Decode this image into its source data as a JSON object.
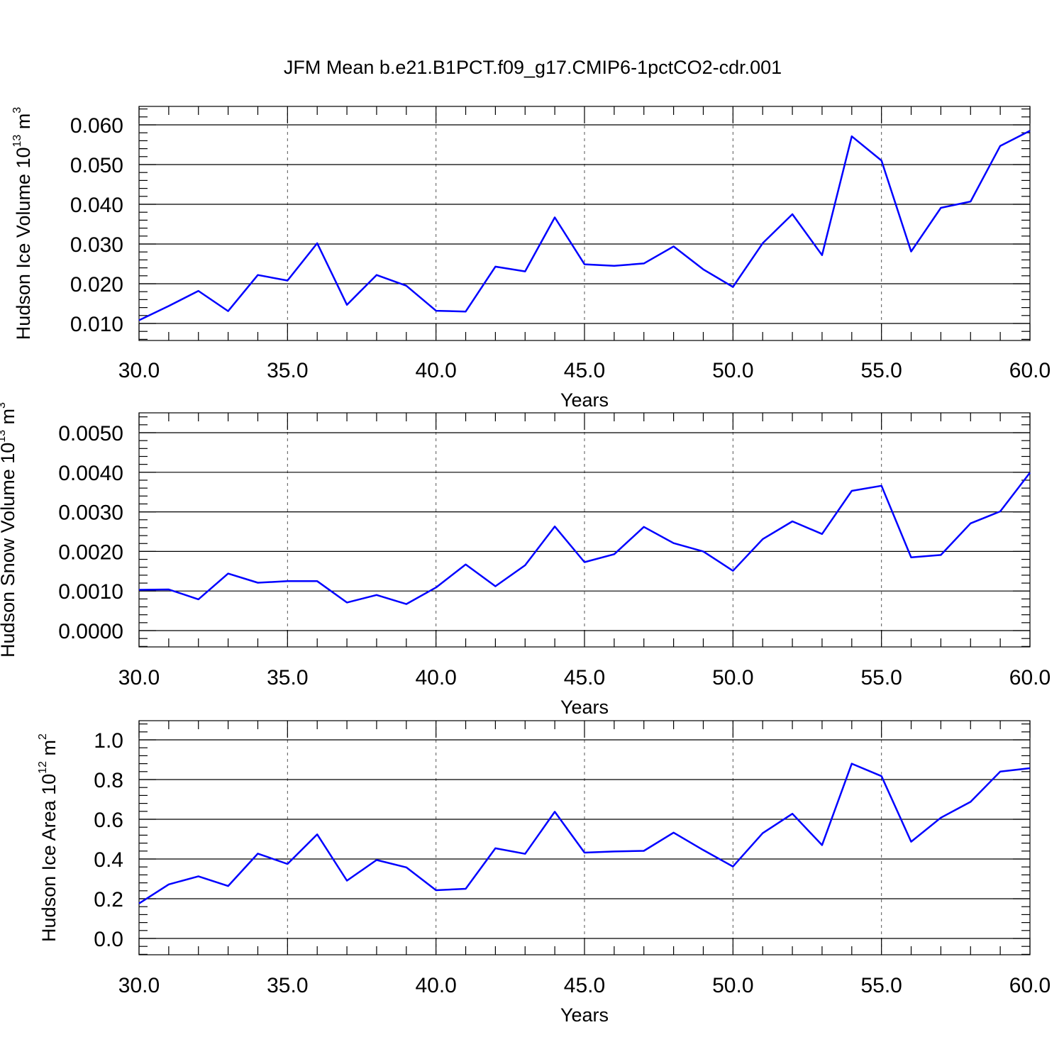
{
  "figure": {
    "title": "JFM Mean b.e21.B1PCT.f09_g17.CMIP6-1pctCO2-cdr.001"
  },
  "chart_data": [
    {
      "type": "line",
      "xlabel": "Years",
      "ylabel": {
        "main": "Hudson Ice Volume 10",
        "exp": "13",
        "unit": " m",
        "unit_exp": "3"
      },
      "xlim": [
        30,
        60
      ],
      "ylim": [
        0.01,
        0.06
      ],
      "x_ticks": [
        "30.0",
        "35.0",
        "40.0",
        "45.0",
        "50.0",
        "55.0",
        "60.0"
      ],
      "y_ticks": [
        "0.010",
        "0.020",
        "0.030",
        "0.040",
        "0.050",
        "0.060"
      ],
      "y_tick_values": [
        0.01,
        0.02,
        0.03,
        0.04,
        0.05,
        0.06
      ],
      "grid": "vertical dashed at major x ticks",
      "x": [
        30,
        31,
        32,
        33,
        34,
        35,
        36,
        37,
        38,
        39,
        40,
        41,
        42,
        43,
        44,
        45,
        46,
        47,
        48,
        49,
        50,
        51,
        52,
        53,
        54,
        55,
        56,
        57,
        58,
        59,
        60
      ],
      "series": [
        {
          "color": "#0000ff",
          "values": [
            0.0108,
            0.0144,
            0.0182,
            0.0131,
            0.0222,
            0.0208,
            0.0302,
            0.0147,
            0.0222,
            0.0195,
            0.0132,
            0.013,
            0.0243,
            0.0231,
            0.0367,
            0.0249,
            0.0245,
            0.0251,
            0.0294,
            0.0236,
            0.0192,
            0.0302,
            0.0375,
            0.0272,
            0.0571,
            0.051,
            0.0281,
            0.0391,
            0.0407,
            0.0547,
            0.0585
          ]
        }
      ]
    },
    {
      "type": "line",
      "xlabel": "Years",
      "ylabel": {
        "main": "Hudson Snow Volume 10",
        "exp": "13",
        "unit": " m",
        "unit_exp": "3"
      },
      "xlim": [
        30,
        60
      ],
      "ylim": [
        0,
        0.005
      ],
      "x_ticks": [
        "30.0",
        "35.0",
        "40.0",
        "45.0",
        "50.0",
        "55.0",
        "60.0"
      ],
      "y_ticks": [
        "0.0000",
        "0.0010",
        "0.0020",
        "0.0030",
        "0.0040",
        "0.0050"
      ],
      "y_tick_values": [
        0,
        0.001,
        0.002,
        0.003,
        0.004,
        0.005
      ],
      "grid": "vertical dashed at major x ticks",
      "x": [
        30,
        31,
        32,
        33,
        34,
        35,
        36,
        37,
        38,
        39,
        40,
        41,
        42,
        43,
        44,
        45,
        46,
        47,
        48,
        49,
        50,
        51,
        52,
        53,
        54,
        55,
        56,
        57,
        58,
        59,
        60
      ],
      "series": [
        {
          "color": "#0000ff",
          "values": [
            0.00103,
            0.00104,
            0.00079,
            0.00144,
            0.00121,
            0.00125,
            0.00125,
            0.00071,
            0.0009,
            0.00067,
            0.00109,
            0.00167,
            0.00112,
            0.00165,
            0.00263,
            0.00173,
            0.00193,
            0.00262,
            0.00221,
            0.002,
            0.00151,
            0.00231,
            0.00276,
            0.00244,
            0.00353,
            0.00366,
            0.00185,
            0.00191,
            0.00271,
            0.00301,
            0.00399
          ]
        }
      ]
    },
    {
      "type": "line",
      "xlabel": "Years",
      "ylabel": {
        "main": "Hudson Ice Area 10",
        "exp": "12",
        "unit": " m",
        "unit_exp": "2"
      },
      "xlim": [
        30,
        60
      ],
      "ylim": [
        0,
        1.0
      ],
      "x_ticks": [
        "30.0",
        "35.0",
        "40.0",
        "45.0",
        "50.0",
        "55.0",
        "60.0"
      ],
      "y_ticks": [
        "0.0",
        "0.2",
        "0.4",
        "0.6",
        "0.8",
        "1.0"
      ],
      "y_tick_values": [
        0,
        0.2,
        0.4,
        0.6,
        0.8,
        1.0
      ],
      "grid": "vertical dashed at major x ticks",
      "x": [
        30,
        31,
        32,
        33,
        34,
        35,
        36,
        37,
        38,
        39,
        40,
        41,
        42,
        43,
        44,
        45,
        46,
        47,
        48,
        49,
        50,
        51,
        52,
        53,
        54,
        55,
        56,
        57,
        58,
        59,
        60
      ],
      "series": [
        {
          "color": "#0000ff",
          "values": [
            0.176,
            0.272,
            0.313,
            0.264,
            0.427,
            0.375,
            0.524,
            0.291,
            0.395,
            0.358,
            0.243,
            0.25,
            0.454,
            0.426,
            0.638,
            0.432,
            0.438,
            0.441,
            0.533,
            0.445,
            0.362,
            0.53,
            0.628,
            0.47,
            0.88,
            0.817,
            0.487,
            0.608,
            0.688,
            0.84,
            0.857
          ]
        }
      ]
    }
  ]
}
